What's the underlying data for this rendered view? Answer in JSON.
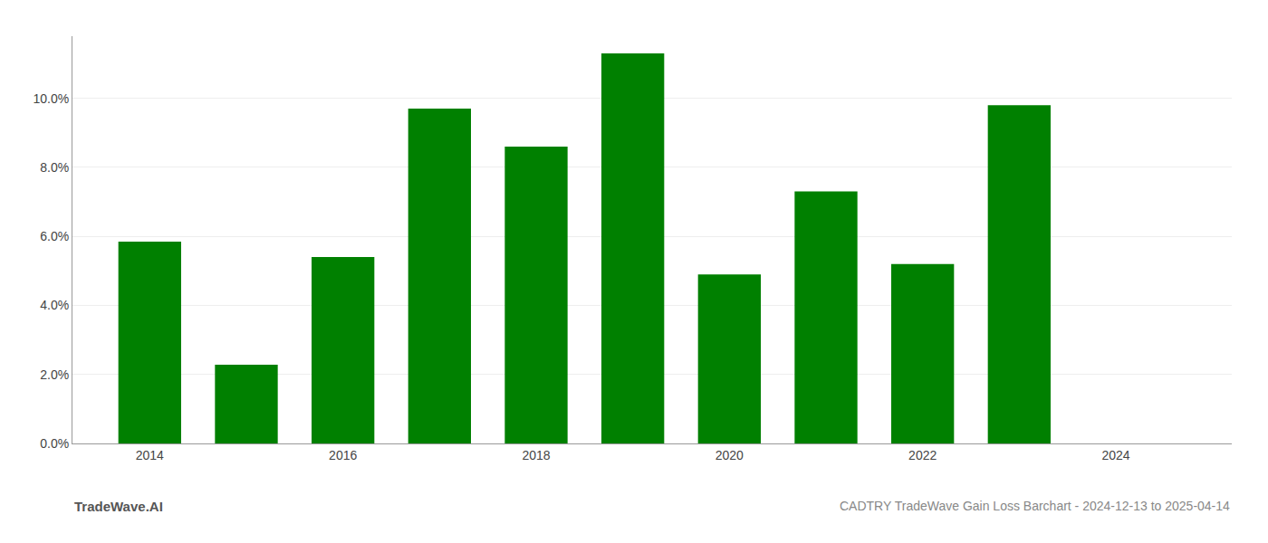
{
  "chart_data": {
    "type": "bar",
    "title": "CADTRY TradeWave Gain Loss Barchart - 2024-12-13 to 2025-04-14",
    "annotations": [
      "TradeWave.AI"
    ],
    "x": [
      2014,
      2015,
      2016,
      2017,
      2018,
      2019,
      2020,
      2021,
      2022,
      2023
    ],
    "values": [
      0.0585,
      0.0228,
      0.054,
      0.097,
      0.086,
      0.113,
      0.049,
      0.073,
      0.052,
      0.098
    ],
    "color": "#008000",
    "xlim": [
      2013.2,
      2025.2
    ],
    "xticks": [
      2014,
      2016,
      2018,
      2020,
      2022,
      2024
    ],
    "ylim": [
      0,
      0.118
    ],
    "yticks": [
      {
        "value": 0.0,
        "label": "0.0%"
      },
      {
        "value": 0.02,
        "label": "2.0%"
      },
      {
        "value": 0.04,
        "label": "4.0%"
      },
      {
        "value": 0.06,
        "label": "6.0%"
      },
      {
        "value": 0.08,
        "label": "8.0%"
      },
      {
        "value": 0.1,
        "label": "10.0%"
      }
    ],
    "grid": true
  }
}
